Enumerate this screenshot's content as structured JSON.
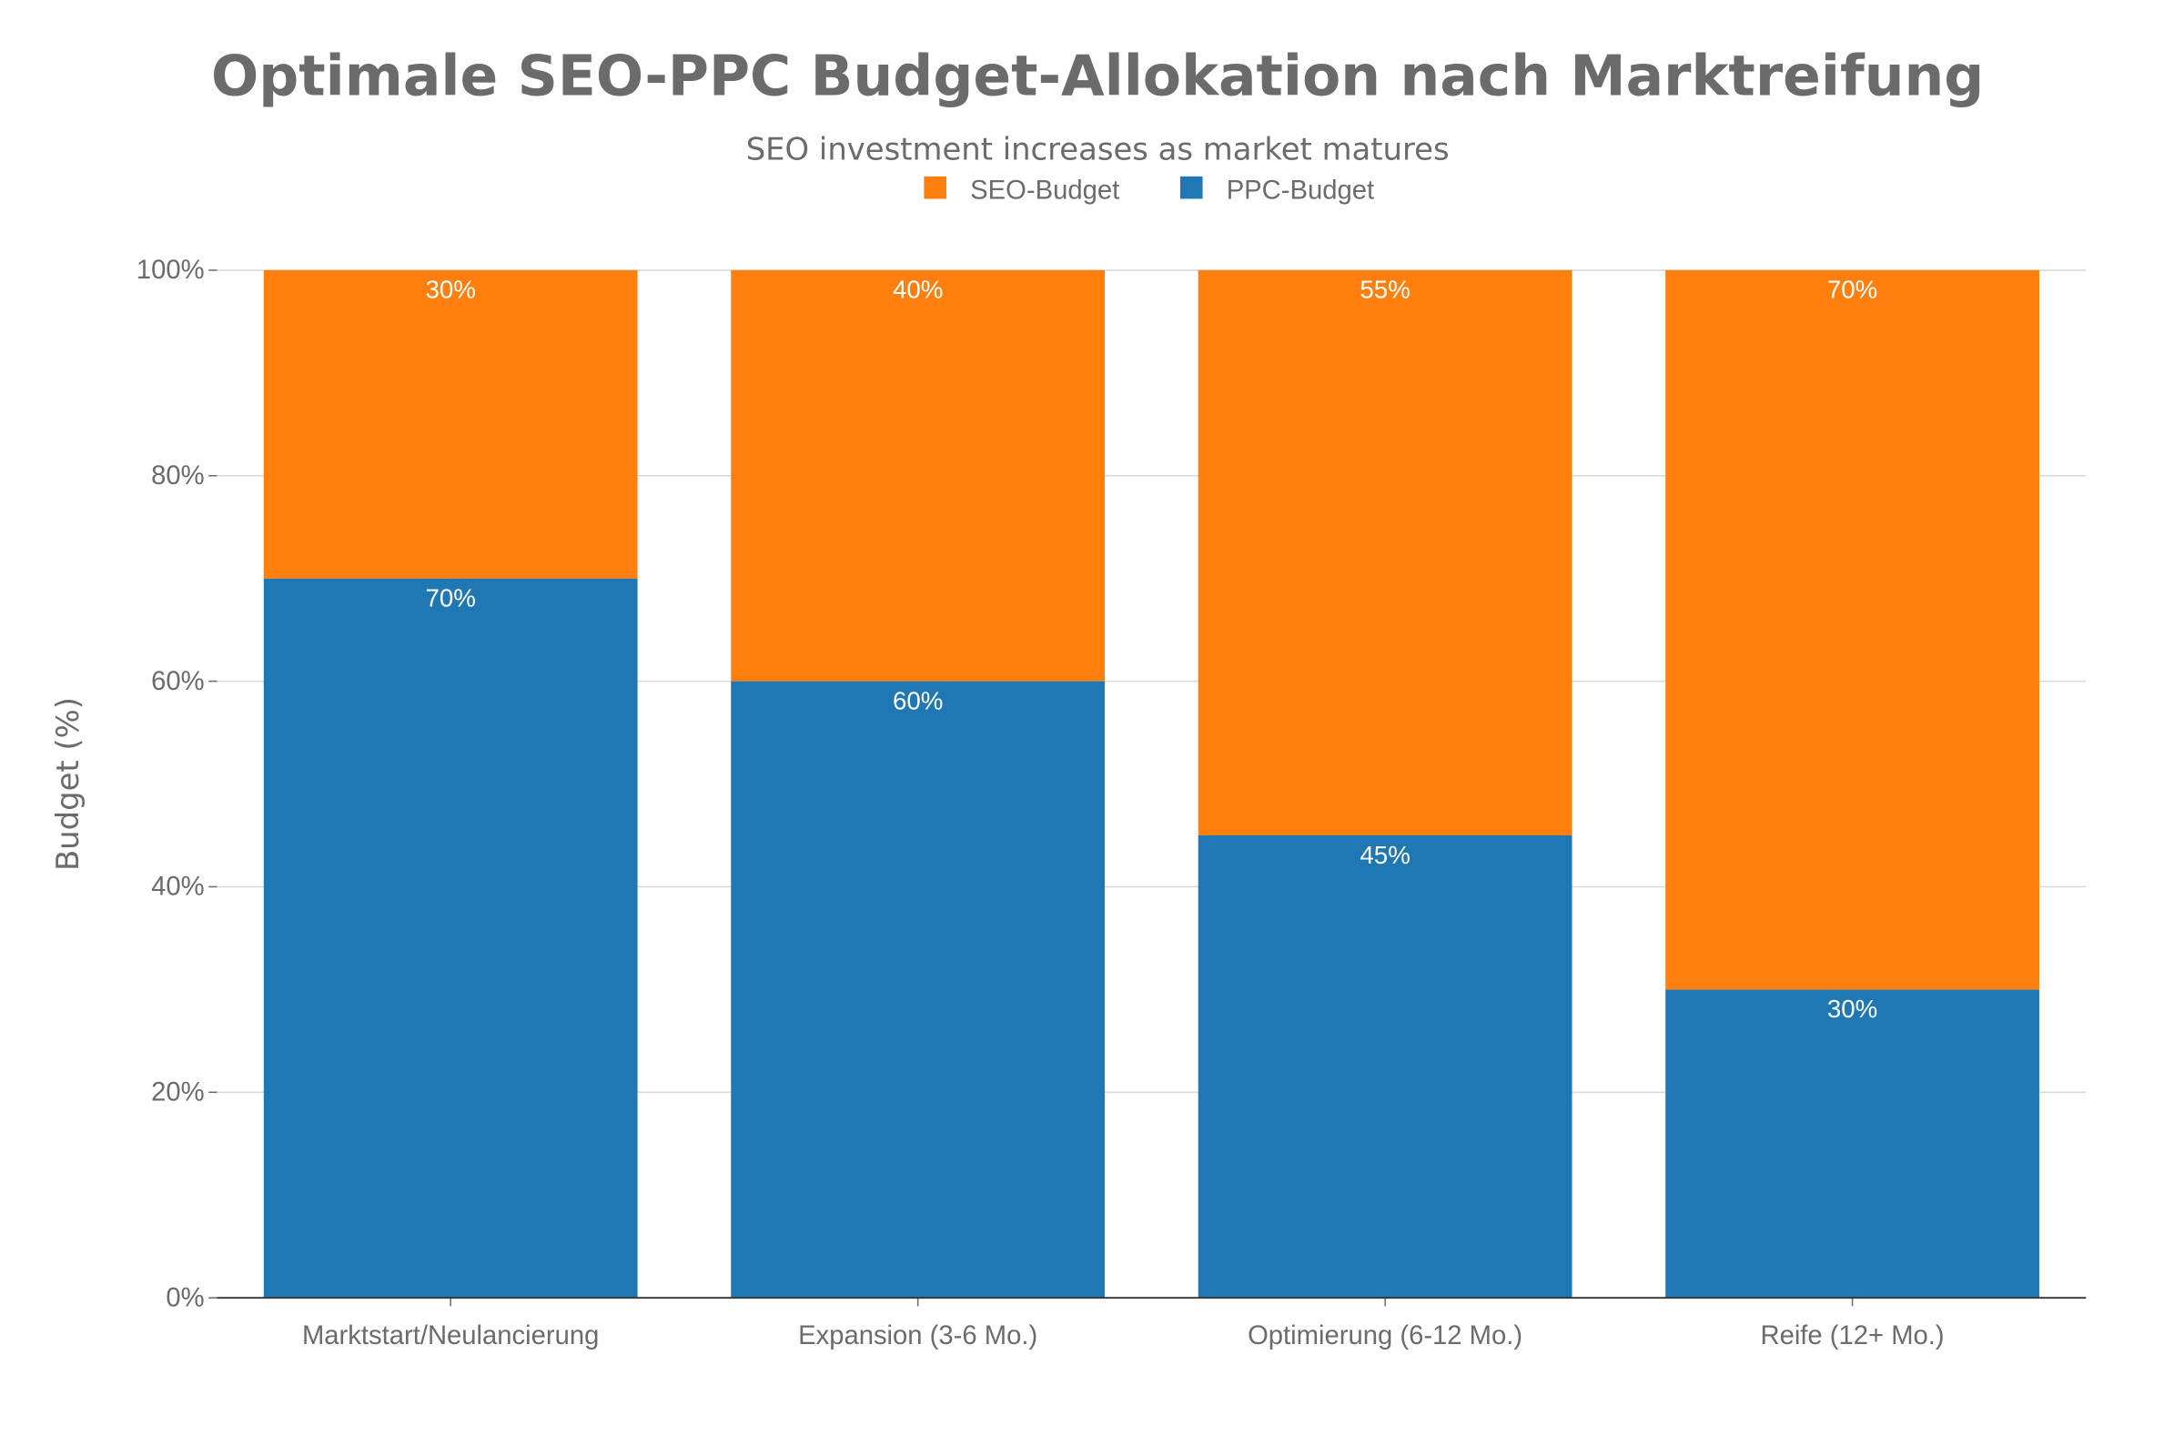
{
  "chart_data": {
    "type": "bar",
    "stacked": true,
    "title": "Optimale SEO-PPC Budget-Allokation nach Marktreifung",
    "subtitle": "SEO investment increases as market matures",
    "xlabel": "",
    "ylabel": "Budget (%)",
    "ylim": [
      0,
      100
    ],
    "yticks": [
      "0%",
      "20%",
      "40%",
      "60%",
      "80%",
      "100%"
    ],
    "grid": true,
    "legend_position": "top-center",
    "categories": [
      "Marktstart/Neulancierung",
      "Expansion (3-6 Mo.)",
      "Optimierung (6-12 Mo.)",
      "Reife (12+ Mo.)"
    ],
    "series": [
      {
        "name": "PPC-Budget",
        "color": "#1f77b4",
        "values": [
          70,
          60,
          45,
          30
        ],
        "labels": [
          "70%",
          "60%",
          "45%",
          "30%"
        ]
      },
      {
        "name": "SEO-Budget",
        "color": "#ff7f0e",
        "values": [
          30,
          40,
          55,
          70
        ],
        "labels": [
          "30%",
          "40%",
          "55%",
          "70%"
        ]
      }
    ],
    "legend_order": [
      "SEO-Budget",
      "PPC-Budget"
    ]
  }
}
